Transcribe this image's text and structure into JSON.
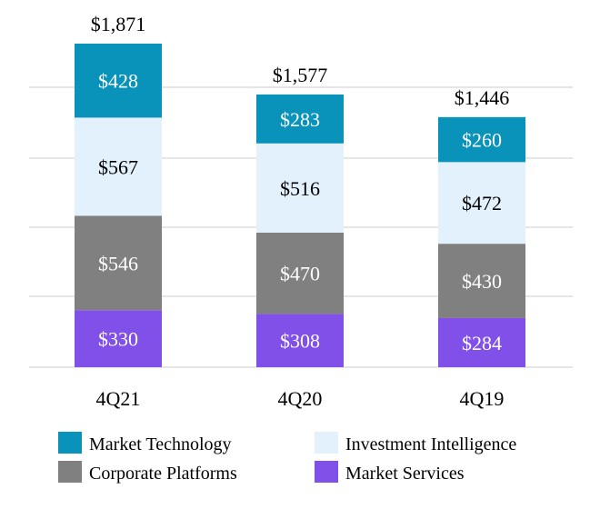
{
  "chart_data": {
    "type": "bar",
    "stacked": true,
    "categories": [
      "4Q21",
      "4Q20",
      "4Q19"
    ],
    "series": [
      {
        "name": "Market Services",
        "values": [
          330,
          308,
          284
        ],
        "labels": [
          "$330",
          "$308",
          "$284"
        ],
        "color": "#8050e8",
        "label_color": "#ffffff"
      },
      {
        "name": "Corporate Platforms",
        "values": [
          546,
          470,
          430
        ],
        "labels": [
          "$546",
          "$470",
          "$430"
        ],
        "color": "#808080",
        "label_color": "#ffffff"
      },
      {
        "name": "Investment Intelligence",
        "values": [
          567,
          516,
          472
        ],
        "labels": [
          "$567",
          "$516",
          "$472"
        ],
        "color": "#e3f1fd",
        "label_color": "#000000"
      },
      {
        "name": "Market Technology",
        "values": [
          428,
          283,
          260
        ],
        "labels": [
          "$428",
          "$283",
          "$260"
        ],
        "color": "#0a93ba",
        "label_color": "#ffffff"
      }
    ],
    "totals": [
      "$1,871",
      "$1,577",
      "$1,446"
    ],
    "ylim": [
      0,
      1871
    ],
    "grid": true,
    "gridline_color": "#e6e6e6",
    "legend": {
      "position": "bottom",
      "items": [
        {
          "name": "Market Technology",
          "color": "#0a93ba"
        },
        {
          "name": "Investment Intelligence",
          "color": "#e3f1fd"
        },
        {
          "name": "Corporate Platforms",
          "color": "#808080"
        },
        {
          "name": "Market Services",
          "color": "#8050e8"
        }
      ]
    }
  }
}
